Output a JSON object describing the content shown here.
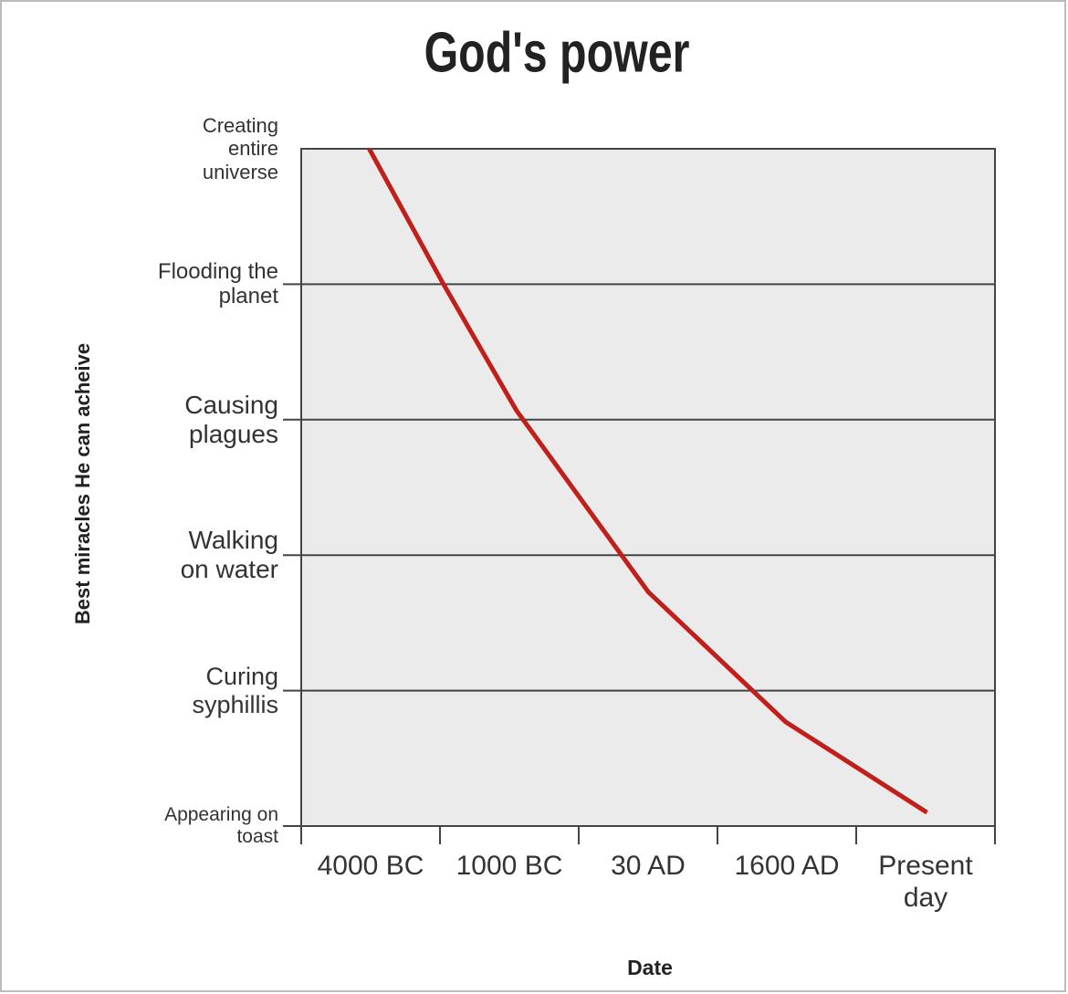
{
  "chart_data": {
    "type": "line",
    "title": "God's power",
    "x_label": "Date",
    "y_label": "Best miracles He can acheive",
    "categories": [
      "4000 BC",
      "1000 BC",
      "30 AD",
      "1600 AD",
      "Present day"
    ],
    "x": [
      0.49,
      1.02,
      1.55,
      2.5,
      3.49,
      4.51
    ],
    "xlim": [
      0,
      5
    ],
    "series": [
      {
        "color": "#c0201c",
        "values": [
          5.0,
          4.01,
          3.07,
          1.73,
          0.77,
          0.1
        ]
      }
    ],
    "ylim": [
      0,
      5
    ],
    "yticks": [
      {
        "value": 0,
        "label": "Appearing on toast"
      },
      {
        "value": 1,
        "label": "Curing syphillis"
      },
      {
        "value": 2,
        "label": "Walking on water"
      },
      {
        "value": 3,
        "label": "Causing plagues"
      },
      {
        "value": 4,
        "label": "Flooding the planet"
      },
      {
        "value": 5,
        "label": "Creating entire universe"
      }
    ],
    "grid": true
  }
}
